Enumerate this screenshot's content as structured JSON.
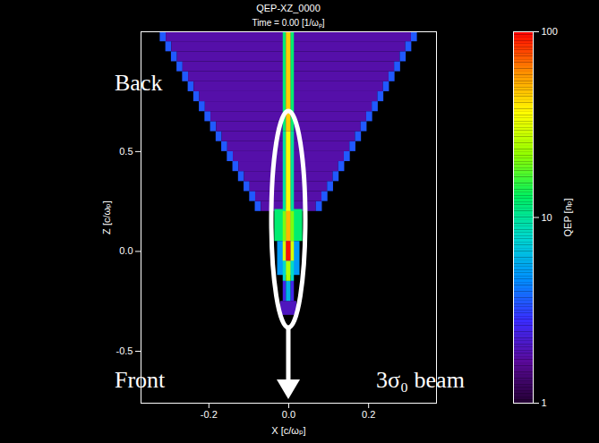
{
  "chart_data": {
    "type": "heatmap",
    "title": "QEP-XZ_0000",
    "subtitle": "Time = 0.00 [1/ωₚ]",
    "x_label": "X [c/ωₚ]",
    "y_label": "Z [c/ωₚ]",
    "xlim": [
      -0.37,
      0.37
    ],
    "xticks": [
      -0.2,
      {
        "value": 0,
        "label": "0.0"
      },
      0.2
    ],
    "ylim": [
      -0.76,
      1.1
    ],
    "yticks": [
      -0.5,
      {
        "value": 0,
        "label": "0.0"
      },
      0.5
    ],
    "colorbar": {
      "label": "QEP [nₚ]",
      "range": [
        1,
        100
      ],
      "ticks": [
        1,
        10,
        100
      ],
      "log": true
    },
    "annotations": [
      "Back",
      "Front",
      "3σ₀ beam"
    ],
    "cells": [
      {
        "x1": -0.084,
        "x2": -0.069,
        "z1": 0.2,
        "z2": 0.25,
        "value": 3.5
      },
      {
        "x1": -0.069,
        "x2": 0.069,
        "z1": 0.2,
        "z2": 0.25,
        "value": 1.8
      },
      {
        "x1": 0.069,
        "x2": 0.084,
        "z1": 0.2,
        "z2": 0.25,
        "value": 3.5
      },
      {
        "x1": -0.098,
        "x2": -0.083,
        "z1": 0.25,
        "z2": 0.3,
        "value": 3.5
      },
      {
        "x1": -0.083,
        "x2": 0.083,
        "z1": 0.25,
        "z2": 0.3,
        "value": 1.8
      },
      {
        "x1": 0.083,
        "x2": 0.098,
        "z1": 0.25,
        "z2": 0.3,
        "value": 3.5
      },
      {
        "x1": -0.112,
        "x2": -0.097,
        "z1": 0.3,
        "z2": 0.35,
        "value": 3.5
      },
      {
        "x1": -0.097,
        "x2": 0.097,
        "z1": 0.3,
        "z2": 0.35,
        "value": 1.8
      },
      {
        "x1": 0.097,
        "x2": 0.112,
        "z1": 0.3,
        "z2": 0.35,
        "value": 3.5
      },
      {
        "x1": -0.126,
        "x2": -0.111,
        "z1": 0.35,
        "z2": 0.4,
        "value": 3.5
      },
      {
        "x1": -0.111,
        "x2": 0.111,
        "z1": 0.35,
        "z2": 0.4,
        "value": 1.8
      },
      {
        "x1": 0.111,
        "x2": 0.126,
        "z1": 0.35,
        "z2": 0.4,
        "value": 3.5
      },
      {
        "x1": -0.14,
        "x2": -0.125,
        "z1": 0.4,
        "z2": 0.45,
        "value": 3.5
      },
      {
        "x1": -0.125,
        "x2": 0.125,
        "z1": 0.4,
        "z2": 0.45,
        "value": 1.8
      },
      {
        "x1": 0.125,
        "x2": 0.14,
        "z1": 0.4,
        "z2": 0.45,
        "value": 3.5
      },
      {
        "x1": -0.154,
        "x2": -0.139,
        "z1": 0.45,
        "z2": 0.5,
        "value": 3.5
      },
      {
        "x1": -0.139,
        "x2": 0.139,
        "z1": 0.45,
        "z2": 0.5,
        "value": 1.8
      },
      {
        "x1": 0.139,
        "x2": 0.154,
        "z1": 0.45,
        "z2": 0.5,
        "value": 3.5
      },
      {
        "x1": -0.168,
        "x2": -0.153,
        "z1": 0.5,
        "z2": 0.55,
        "value": 3.5
      },
      {
        "x1": -0.153,
        "x2": 0.153,
        "z1": 0.5,
        "z2": 0.55,
        "value": 1.8
      },
      {
        "x1": 0.153,
        "x2": 0.168,
        "z1": 0.5,
        "z2": 0.55,
        "value": 3.5
      },
      {
        "x1": -0.182,
        "x2": -0.167,
        "z1": 0.55,
        "z2": 0.6,
        "value": 3.5
      },
      {
        "x1": -0.167,
        "x2": 0.167,
        "z1": 0.55,
        "z2": 0.6,
        "value": 1.8
      },
      {
        "x1": 0.167,
        "x2": 0.182,
        "z1": 0.55,
        "z2": 0.6,
        "value": 3.5
      },
      {
        "x1": -0.196,
        "x2": -0.181,
        "z1": 0.6,
        "z2": 0.65,
        "value": 3.5
      },
      {
        "x1": -0.181,
        "x2": 0.181,
        "z1": 0.6,
        "z2": 0.65,
        "value": 1.8
      },
      {
        "x1": 0.181,
        "x2": 0.196,
        "z1": 0.6,
        "z2": 0.65,
        "value": 3.5
      },
      {
        "x1": -0.21,
        "x2": -0.195,
        "z1": 0.65,
        "z2": 0.7,
        "value": 3.5
      },
      {
        "x1": -0.195,
        "x2": 0.195,
        "z1": 0.65,
        "z2": 0.7,
        "value": 1.8
      },
      {
        "x1": 0.195,
        "x2": 0.21,
        "z1": 0.65,
        "z2": 0.7,
        "value": 3.5
      },
      {
        "x1": -0.224,
        "x2": -0.209,
        "z1": 0.7,
        "z2": 0.75,
        "value": 3.5
      },
      {
        "x1": -0.209,
        "x2": 0.209,
        "z1": 0.7,
        "z2": 0.75,
        "value": 1.8
      },
      {
        "x1": 0.209,
        "x2": 0.224,
        "z1": 0.7,
        "z2": 0.75,
        "value": 3.5
      },
      {
        "x1": -0.238,
        "x2": -0.223,
        "z1": 0.75,
        "z2": 0.8,
        "value": 3.5
      },
      {
        "x1": -0.223,
        "x2": 0.223,
        "z1": 0.75,
        "z2": 0.8,
        "value": 1.8
      },
      {
        "x1": 0.223,
        "x2": 0.238,
        "z1": 0.75,
        "z2": 0.8,
        "value": 3.5
      },
      {
        "x1": -0.252,
        "x2": -0.237,
        "z1": 0.8,
        "z2": 0.85,
        "value": 3.5
      },
      {
        "x1": -0.237,
        "x2": 0.237,
        "z1": 0.8,
        "z2": 0.85,
        "value": 1.8
      },
      {
        "x1": 0.237,
        "x2": 0.252,
        "z1": 0.8,
        "z2": 0.85,
        "value": 3.5
      },
      {
        "x1": -0.266,
        "x2": -0.251,
        "z1": 0.85,
        "z2": 0.9,
        "value": 3.5
      },
      {
        "x1": -0.251,
        "x2": 0.251,
        "z1": 0.85,
        "z2": 0.9,
        "value": 1.8
      },
      {
        "x1": 0.251,
        "x2": 0.266,
        "z1": 0.85,
        "z2": 0.9,
        "value": 3.5
      },
      {
        "x1": -0.28,
        "x2": -0.265,
        "z1": 0.9,
        "z2": 0.95,
        "value": 3.5
      },
      {
        "x1": -0.265,
        "x2": 0.265,
        "z1": 0.9,
        "z2": 0.95,
        "value": 1.8
      },
      {
        "x1": 0.265,
        "x2": 0.28,
        "z1": 0.9,
        "z2": 0.95,
        "value": 3.5
      },
      {
        "x1": -0.294,
        "x2": -0.279,
        "z1": 0.95,
        "z2": 1.0,
        "value": 3.5
      },
      {
        "x1": -0.279,
        "x2": 0.279,
        "z1": 0.95,
        "z2": 1.0,
        "value": 1.8
      },
      {
        "x1": 0.279,
        "x2": 0.294,
        "z1": 0.95,
        "z2": 1.0,
        "value": 3.5
      },
      {
        "x1": -0.308,
        "x2": -0.293,
        "z1": 1.0,
        "z2": 1.05,
        "value": 3.5
      },
      {
        "x1": -0.293,
        "x2": 0.293,
        "z1": 1.0,
        "z2": 1.05,
        "value": 1.8
      },
      {
        "x1": 0.293,
        "x2": 0.308,
        "z1": 1.0,
        "z2": 1.05,
        "value": 3.5
      },
      {
        "x1": -0.322,
        "x2": -0.307,
        "z1": 1.05,
        "z2": 1.1,
        "value": 3.5
      },
      {
        "x1": -0.307,
        "x2": 0.307,
        "z1": 1.05,
        "z2": 1.1,
        "value": 1.8
      },
      {
        "x1": 0.307,
        "x2": 0.322,
        "z1": 1.05,
        "z2": 1.1,
        "value": 3.5
      },
      {
        "x1": -0.035,
        "x2": 0.035,
        "z1": 0.05,
        "z2": 0.21,
        "value": 12
      },
      {
        "x1": -0.028,
        "x2": 0.028,
        "z1": -0.12,
        "z2": 0.05,
        "value": 5
      },
      {
        "x1": -0.02,
        "x2": 0.02,
        "z1": -0.32,
        "z2": -0.25,
        "value": 2
      },
      {
        "x1": -0.014,
        "x2": -0.006,
        "z1": 0.6,
        "z2": 1.1,
        "value": 12
      },
      {
        "x1": -0.006,
        "x2": 0.006,
        "z1": 0.6,
        "z2": 1.1,
        "value": 45
      },
      {
        "x1": 0.006,
        "x2": 0.014,
        "z1": 0.6,
        "z2": 1.1,
        "value": 12
      },
      {
        "x1": -0.014,
        "x2": -0.006,
        "z1": 0.2,
        "z2": 0.6,
        "value": 10
      },
      {
        "x1": -0.006,
        "x2": 0.006,
        "z1": 0.2,
        "z2": 0.6,
        "value": 35
      },
      {
        "x1": 0.006,
        "x2": 0.014,
        "z1": 0.2,
        "z2": 0.6,
        "value": 10
      },
      {
        "x1": -0.014,
        "x2": -0.006,
        "z1": 0.05,
        "z2": 0.2,
        "value": 20
      },
      {
        "x1": -0.006,
        "x2": 0.006,
        "z1": 0.05,
        "z2": 0.2,
        "value": 50
      },
      {
        "x1": 0.006,
        "x2": 0.014,
        "z1": 0.05,
        "z2": 0.2,
        "value": 20
      },
      {
        "x1": -0.014,
        "x2": -0.006,
        "z1": -0.05,
        "z2": 0.05,
        "value": 30
      },
      {
        "x1": -0.006,
        "x2": 0.006,
        "z1": -0.05,
        "z2": 0.05,
        "value": 95
      },
      {
        "x1": 0.006,
        "x2": 0.014,
        "z1": -0.05,
        "z2": 0.05,
        "value": 30
      },
      {
        "x1": -0.014,
        "x2": -0.006,
        "z1": -0.15,
        "z2": -0.05,
        "value": 8
      },
      {
        "x1": -0.006,
        "x2": 0.006,
        "z1": -0.15,
        "z2": -0.05,
        "value": 25
      },
      {
        "x1": 0.006,
        "x2": 0.014,
        "z1": -0.15,
        "z2": -0.05,
        "value": 8
      },
      {
        "x1": -0.014,
        "x2": -0.006,
        "z1": -0.25,
        "z2": -0.15,
        "value": 2.5
      },
      {
        "x1": -0.006,
        "x2": 0.006,
        "z1": -0.25,
        "z2": -0.15,
        "value": 6
      },
      {
        "x1": 0.006,
        "x2": 0.014,
        "z1": -0.25,
        "z2": -0.15,
        "value": 2.5
      }
    ]
  }
}
